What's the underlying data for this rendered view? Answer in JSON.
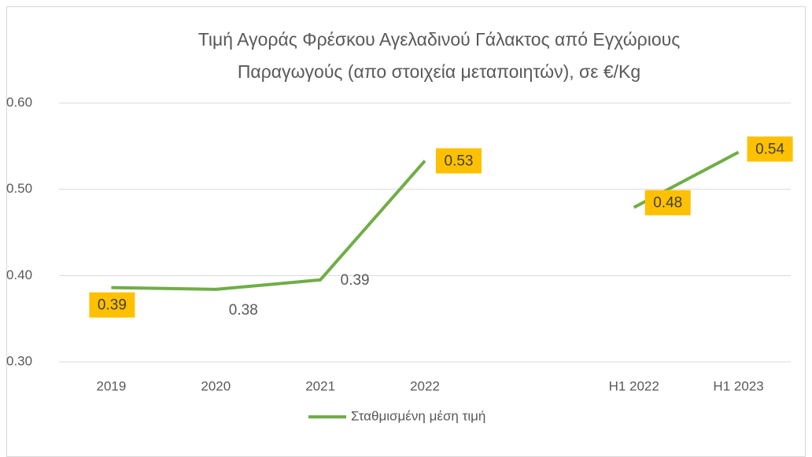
{
  "chart_data": {
    "type": "line",
    "title": [
      "Τιμή Αγοράς Φρέσκου Αγελαδινού Γάλακτος  από Εγχώριους",
      "Παραγωγούς (απο στοιχεία μεταποιητών), σε €/Kg"
    ],
    "categories": [
      "2019",
      "2020",
      "2021",
      "2022",
      null,
      "H1 2022",
      "H1 2023"
    ],
    "series": [
      {
        "name": "Σταθμισμένη μέση τιμή",
        "color": "#70ad47",
        "values": [
          0.386,
          0.384,
          0.395,
          0.533,
          null,
          0.479,
          0.543
        ],
        "value_labels": [
          "0.39",
          "0.38",
          "0.39",
          "0.53",
          null,
          "0.48",
          "0.54"
        ]
      }
    ],
    "ylim": [
      0.3,
      0.6
    ],
    "yticks": [
      {
        "value": 0.3,
        "label": "0.30"
      },
      {
        "value": 0.4,
        "label": "0.40"
      },
      {
        "value": 0.5,
        "label": "0.50"
      },
      {
        "value": 0.6,
        "label": "0.60"
      }
    ],
    "grid": true,
    "legend": "bottom"
  }
}
